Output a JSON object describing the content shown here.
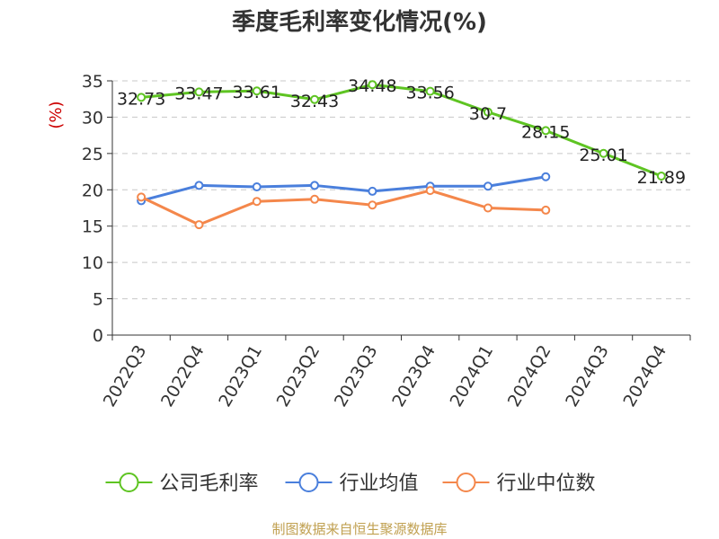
{
  "title": "季度毛利率变化情况(%)",
  "footer": "制图数据来自恒生聚源数据库",
  "chart_data": {
    "type": "line",
    "ylabel": "(%)",
    "ylim": [
      0,
      35
    ],
    "yticks": [
      0,
      5,
      10,
      15,
      20,
      25,
      30,
      35
    ],
    "grid": true,
    "legend_position": "bottom",
    "categories": [
      "2022Q3",
      "2022Q4",
      "2023Q1",
      "2023Q2",
      "2023Q3",
      "2023Q4",
      "2024Q1",
      "2024Q2",
      "2024Q3",
      "2024Q4"
    ],
    "series": [
      {
        "name": "公司毛利率",
        "color": "#5ec422",
        "show_labels": true,
        "values": [
          32.73,
          33.47,
          33.61,
          32.43,
          34.48,
          33.56,
          30.7,
          28.15,
          25.01,
          21.89
        ],
        "labels": [
          "32.73",
          "33.47",
          "33.61",
          "32.43",
          "34.48",
          "33.56",
          "30.7",
          "28.15",
          "25.01",
          "21.89"
        ]
      },
      {
        "name": "行业均值",
        "color": "#4a7fdc",
        "show_labels": false,
        "values": [
          18.5,
          20.6,
          20.4,
          20.6,
          19.8,
          20.5,
          20.5,
          21.8,
          null,
          null
        ]
      },
      {
        "name": "行业中位数",
        "color": "#f4874b",
        "show_labels": false,
        "values": [
          19.0,
          15.2,
          18.4,
          18.7,
          17.9,
          19.9,
          17.5,
          17.2,
          null,
          null
        ]
      }
    ]
  }
}
